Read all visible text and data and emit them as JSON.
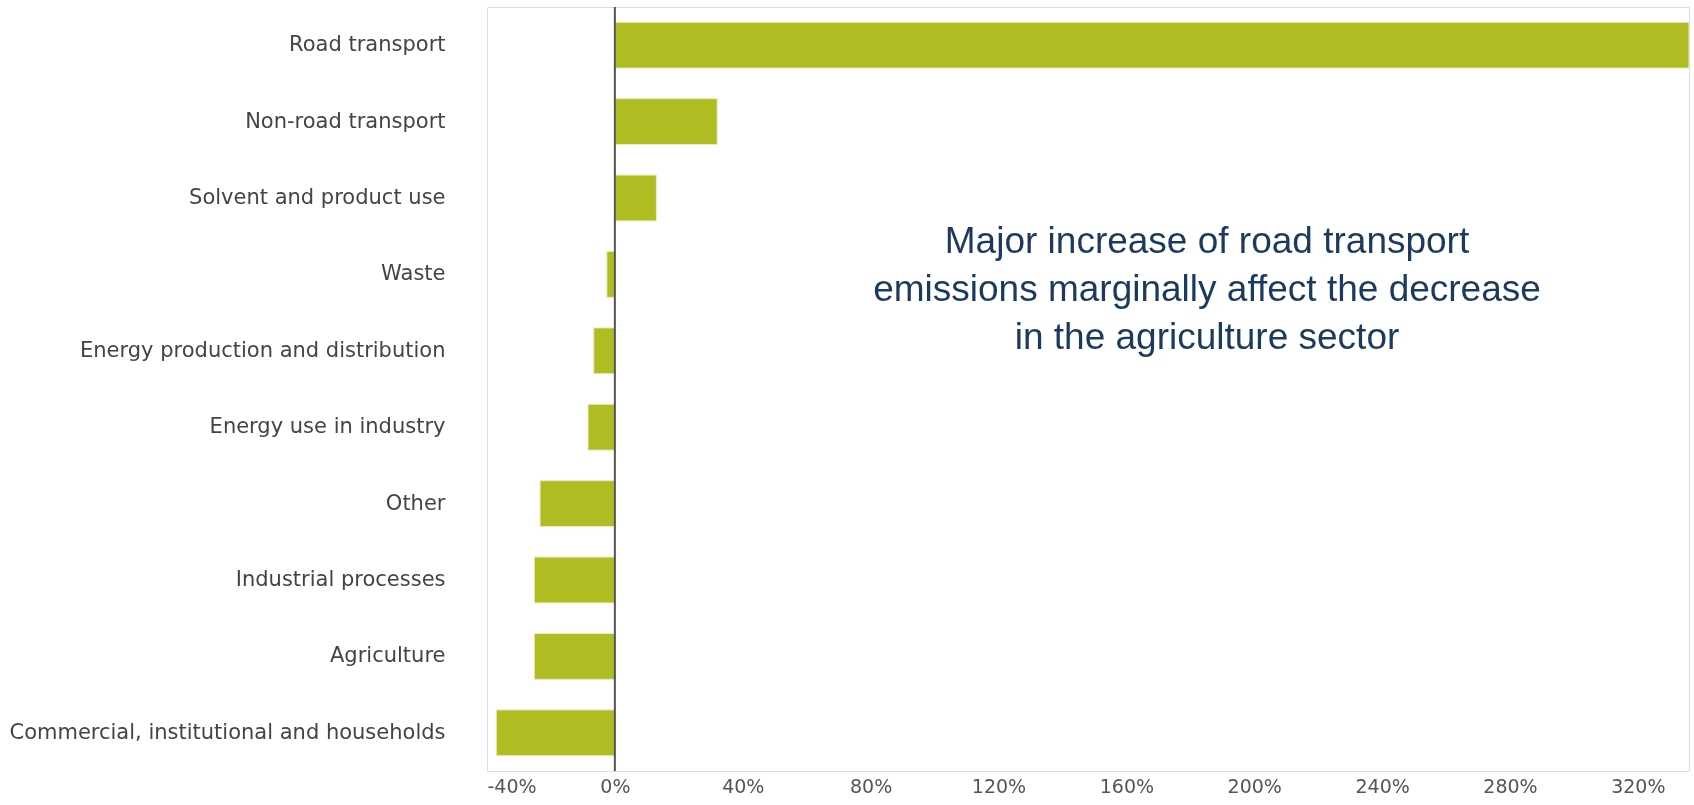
{
  "chart_data": {
    "type": "bar",
    "orientation": "horizontal",
    "categories": [
      "Road transport",
      "Non-road transport",
      "Solvent and product use",
      "Waste",
      "Energy production and distribution",
      "Energy use in industry",
      "Other",
      "Industrial processes",
      "Agriculture",
      "Commercial, institutional and households"
    ],
    "values": [
      336,
      32,
      13,
      -2.5,
      -6.6,
      -8.4,
      -23.4,
      -25.2,
      -25.2,
      -37.1
    ],
    "color": "#afbd22",
    "xlim": [
      -40,
      336
    ],
    "xticks": [
      {
        "value": -40,
        "label": "-40%"
      },
      {
        "value": 0,
        "label": "0%"
      },
      {
        "value": 40,
        "label": "40%"
      },
      {
        "value": 80,
        "label": "80%"
      },
      {
        "value": 120,
        "label": "120%"
      },
      {
        "value": 160,
        "label": "160%"
      },
      {
        "value": 200,
        "label": "200%"
      },
      {
        "value": 240,
        "label": "240%"
      },
      {
        "value": 280,
        "label": "280%"
      },
      {
        "value": 320,
        "label": "320%"
      }
    ],
    "ref_lines": [
      {
        "axis": "x",
        "value": 0,
        "color": "#555555"
      }
    ],
    "annotations": [
      "Major increase of road transport emissions marginally affect the decrease in the agriculture sector"
    ],
    "grid": false
  }
}
